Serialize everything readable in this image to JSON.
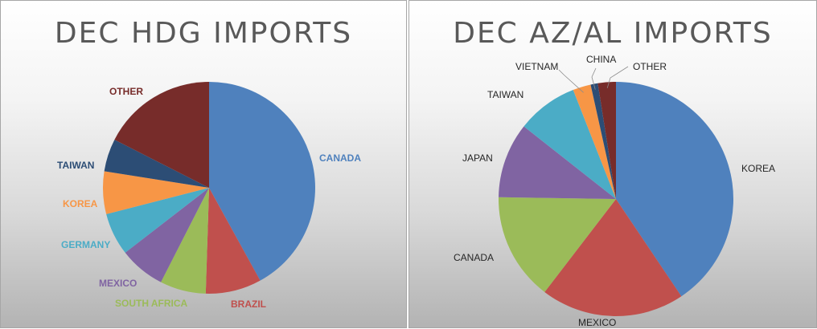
{
  "chart_data": [
    {
      "type": "pie",
      "title": "DEC HDG IMPORTS",
      "slices": [
        {
          "label": "CANADA",
          "value": 42,
          "color": "#4f81bd"
        },
        {
          "label": "BRAZIL",
          "value": 8.5,
          "color": "#c0504d"
        },
        {
          "label": "SOUTH AFRICA",
          "value": 7,
          "color": "#9bbb59"
        },
        {
          "label": "MEXICO",
          "value": 7,
          "color": "#8064a2"
        },
        {
          "label": "GERMANY",
          "value": 6.5,
          "color": "#4bacc6"
        },
        {
          "label": "KOREA",
          "value": 6.5,
          "color": "#f79646"
        },
        {
          "label": "TAIWAN",
          "value": 5,
          "color": "#2c4d75"
        },
        {
          "label": "OTHER",
          "value": 17.5,
          "color": "#772c2a"
        }
      ]
    },
    {
      "type": "pie",
      "title": "DEC AZ/AL IMPORTS",
      "slices": [
        {
          "label": "KOREA",
          "value": 41,
          "color": "#4f81bd"
        },
        {
          "label": "MEXICO",
          "value": 20,
          "color": "#c0504d"
        },
        {
          "label": "CANADA",
          "value": 15,
          "color": "#9bbb59"
        },
        {
          "label": "JAPAN",
          "value": 10.5,
          "color": "#8064a2"
        },
        {
          "label": "TAIWAN",
          "value": 8.5,
          "color": "#4bacc6"
        },
        {
          "label": "VIETNAM",
          "value": 2.5,
          "color": "#f79646"
        },
        {
          "label": "CHINA",
          "value": 1,
          "color": "#2c4d75"
        },
        {
          "label": "OTHER",
          "value": 2.5,
          "color": "#772c2a"
        }
      ]
    }
  ]
}
